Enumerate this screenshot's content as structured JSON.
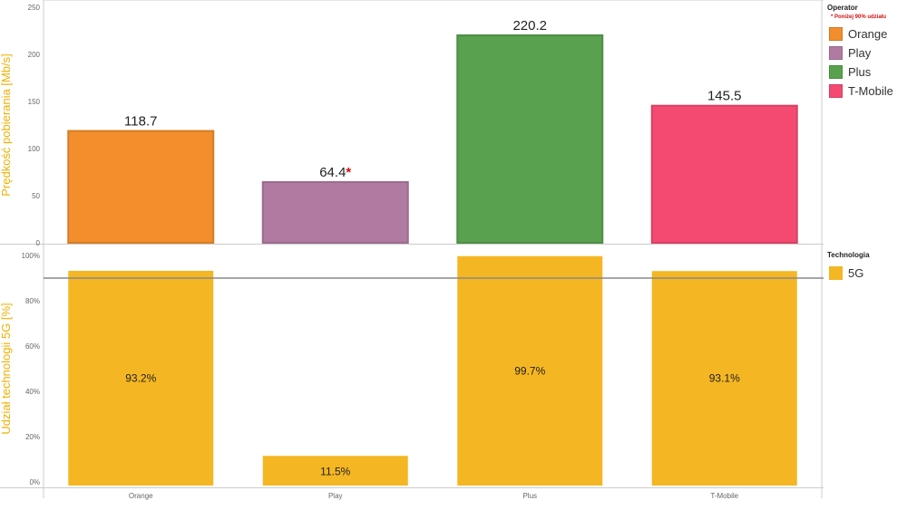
{
  "chart_data": [
    {
      "type": "bar",
      "categories": [
        "Orange",
        "Play",
        "Plus",
        "T-Mobile"
      ],
      "values": [
        118.7,
        64.4,
        220.2,
        145.5
      ],
      "value_labels": [
        "118.7",
        "64.4",
        "220.2",
        "145.5"
      ],
      "value_label_marks": [
        "",
        "*",
        "",
        ""
      ],
      "colors": [
        "#f28e2c",
        "#b07aa1",
        "#59a14f",
        "#f44a72"
      ],
      "ylabel": "Prędkość pobierania [Mb/s]",
      "ylim": [
        0,
        250
      ],
      "yticks": [
        0,
        50,
        100,
        150,
        200,
        250
      ],
      "legend": {
        "title": "Operator",
        "note": "* Poniżej 90% udziału",
        "items": [
          "Orange",
          "Play",
          "Plus",
          "T-Mobile"
        ],
        "placement": "right"
      }
    },
    {
      "type": "bar",
      "categories": [
        "Orange",
        "Play",
        "Plus",
        "T-Mobile"
      ],
      "values": [
        93.2,
        11.5,
        99.7,
        93.1
      ],
      "value_labels": [
        "93.2%",
        "11.5%",
        "99.7%",
        "93.1%"
      ],
      "color": "#f5b623",
      "ylabel": "Udział technologii 5G [%]",
      "ylim": [
        0,
        100
      ],
      "yticks": [
        "0%",
        "20%",
        "40%",
        "60%",
        "80%",
        "100%"
      ],
      "ytick_values": [
        0,
        20,
        40,
        60,
        80,
        100
      ],
      "reference_line": 90,
      "legend": {
        "title": "Technologia",
        "items": [
          "5G"
        ],
        "placement": "right"
      }
    }
  ],
  "colors": {
    "axis_title": "#f0b000",
    "note": "#d01010",
    "reference_line": "#888888"
  }
}
